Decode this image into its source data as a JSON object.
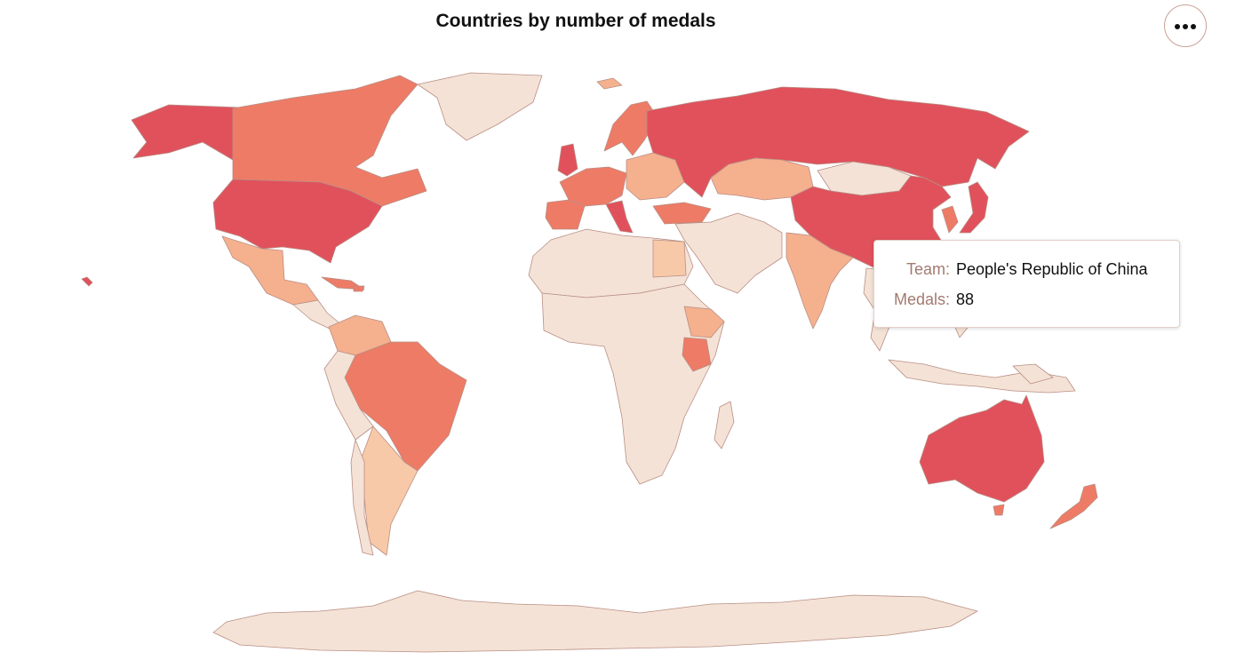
{
  "title": "Countries by number of medals",
  "menu": {
    "icon": "more-horizontal-icon"
  },
  "colors": {
    "highest": "#e0515c",
    "high": "#ee7b66",
    "mid": "#f5b08e",
    "low": "#f7c9a8",
    "lowest": "#f4e2d6",
    "border": "#b98e84",
    "tooltip_key": "#a27a70"
  },
  "tooltip": {
    "team_label": "Team:",
    "team_value": "People's Republic of China",
    "medals_label": "Medals:",
    "medals_value": "88"
  }
}
